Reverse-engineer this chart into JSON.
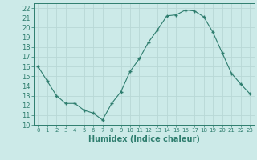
{
  "x": [
    0,
    1,
    2,
    3,
    4,
    5,
    6,
    7,
    8,
    9,
    10,
    11,
    12,
    13,
    14,
    15,
    16,
    17,
    18,
    19,
    20,
    21,
    22,
    23
  ],
  "y": [
    16,
    14.5,
    13,
    12.2,
    12.2,
    11.5,
    11.2,
    10.5,
    12.2,
    13.4,
    15.5,
    16.8,
    18.5,
    19.8,
    21.2,
    21.3,
    21.8,
    21.7,
    21.1,
    19.5,
    17.4,
    15.3,
    14.2,
    13.2
  ],
  "line_color": "#2e7d6e",
  "marker": "+",
  "marker_size": 3.5,
  "marker_lw": 1.0,
  "line_width": 0.8,
  "bg_color": "#cceae8",
  "grid_color": "#b8d8d6",
  "tick_color": "#2e7d6e",
  "xlabel": "Humidex (Indice chaleur)",
  "xlabel_fontsize": 7,
  "ylabel_ticks": [
    10,
    11,
    12,
    13,
    14,
    15,
    16,
    17,
    18,
    19,
    20,
    21,
    22
  ],
  "xtick_fontsize": 5,
  "ytick_fontsize": 6,
  "xlim": [
    -0.5,
    23.5
  ],
  "ylim": [
    10,
    22.5
  ],
  "font_color": "#2e7d6e"
}
